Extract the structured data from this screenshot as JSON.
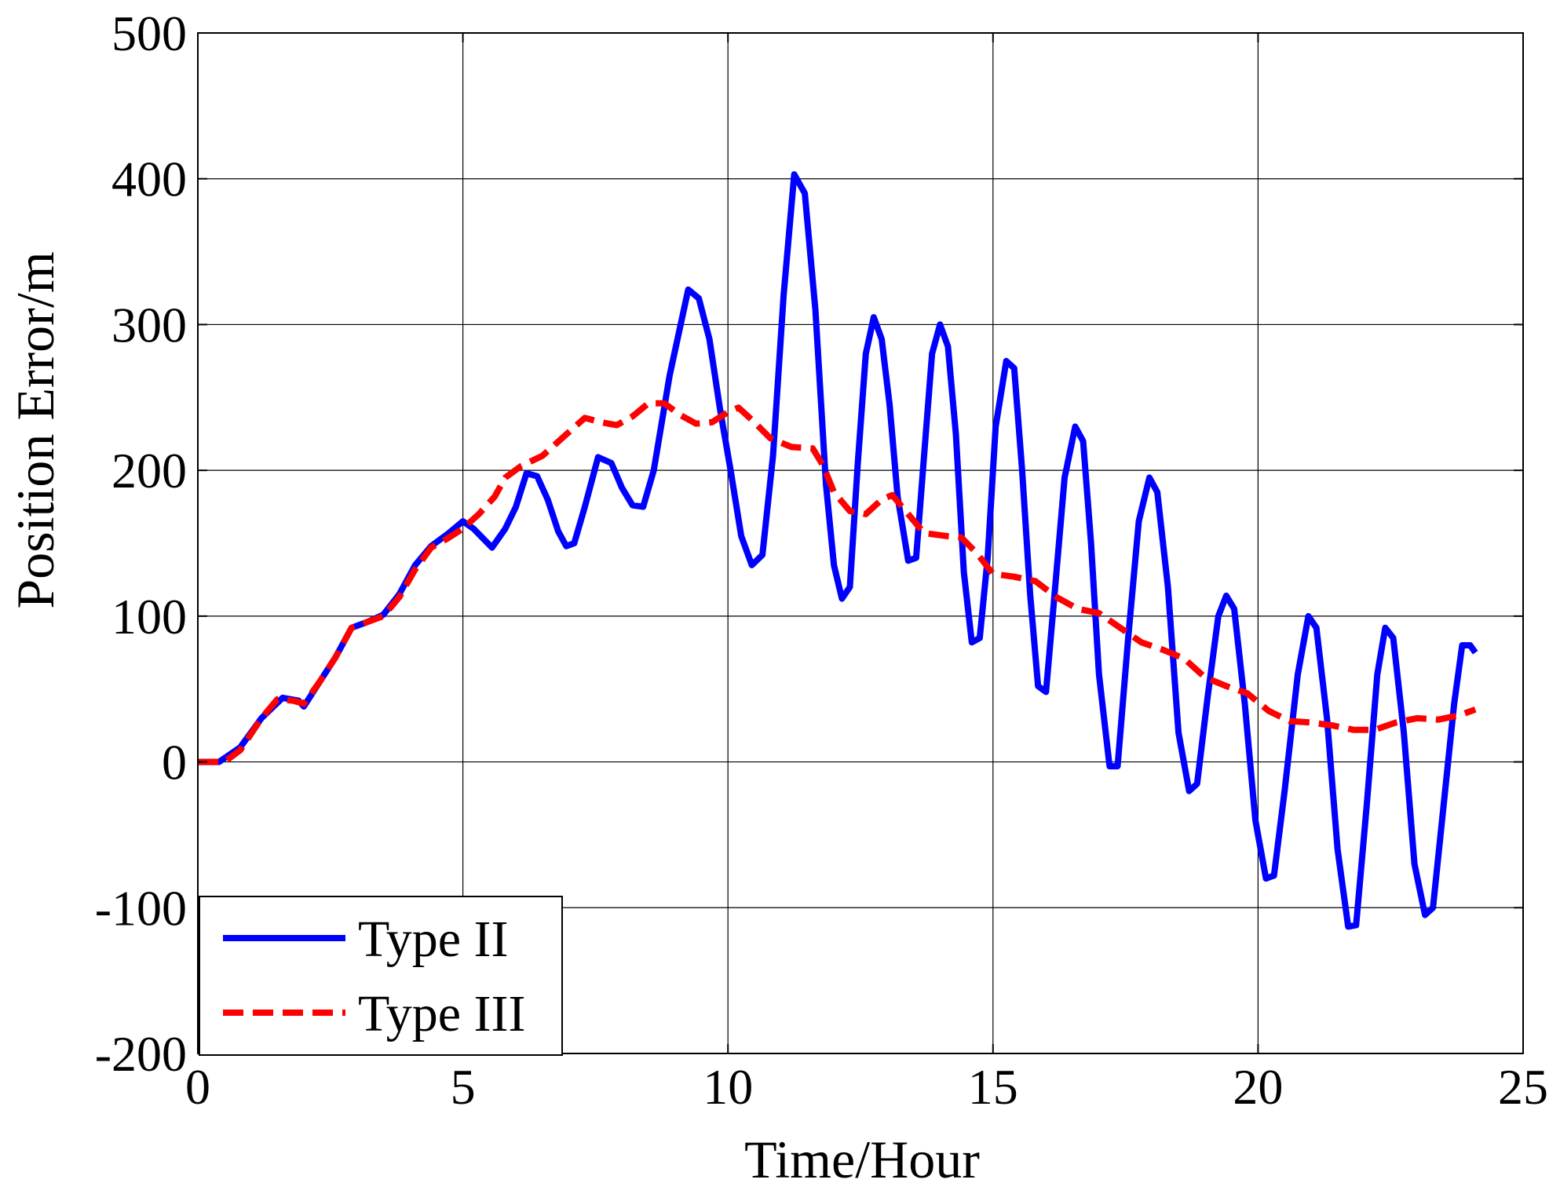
{
  "chart_data": {
    "type": "line",
    "title": "",
    "xlabel": "Time/Hour",
    "ylabel": "Position Error/m",
    "xlim": [
      0,
      25
    ],
    "ylim": [
      -200,
      500
    ],
    "xticks": [
      0,
      5,
      10,
      15,
      20,
      25
    ],
    "yticks": [
      -200,
      -100,
      0,
      100,
      200,
      300,
      400,
      500
    ],
    "xtick_labels": [
      "0",
      "5",
      "10",
      "15",
      "20",
      "25"
    ],
    "ytick_labels": [
      "-200",
      "-100",
      "0",
      "100",
      "200",
      "300",
      "400",
      "500"
    ],
    "grid": true,
    "legend_position": "bottom-left",
    "series": [
      {
        "name": "Type II",
        "color": "#0000ff",
        "style": "solid",
        "points": [
          [
            0,
            0
          ],
          [
            0.4,
            0
          ],
          [
            0.8,
            10
          ],
          [
            1.2,
            30
          ],
          [
            1.6,
            44
          ],
          [
            1.9,
            42
          ],
          [
            2.0,
            38
          ],
          [
            2.3,
            55
          ],
          [
            2.6,
            72
          ],
          [
            2.9,
            92
          ],
          [
            3.2,
            96
          ],
          [
            3.5,
            101
          ],
          [
            3.8,
            115
          ],
          [
            4.1,
            135
          ],
          [
            4.4,
            148
          ],
          [
            4.7,
            156
          ],
          [
            5.0,
            165
          ],
          [
            5.2,
            160
          ],
          [
            5.55,
            147
          ],
          [
            5.8,
            160
          ],
          [
            6.0,
            175
          ],
          [
            6.2,
            198
          ],
          [
            6.4,
            196
          ],
          [
            6.6,
            180
          ],
          [
            6.8,
            158
          ],
          [
            6.95,
            148
          ],
          [
            7.1,
            150
          ],
          [
            7.3,
            175
          ],
          [
            7.55,
            209
          ],
          [
            7.8,
            205
          ],
          [
            8.0,
            188
          ],
          [
            8.2,
            176
          ],
          [
            8.4,
            175
          ],
          [
            8.6,
            200
          ],
          [
            8.9,
            265
          ],
          [
            9.25,
            324
          ],
          [
            9.45,
            318
          ],
          [
            9.65,
            290
          ],
          [
            9.85,
            242
          ],
          [
            10.05,
            200
          ],
          [
            10.25,
            155
          ],
          [
            10.45,
            135
          ],
          [
            10.65,
            142
          ],
          [
            10.85,
            210
          ],
          [
            11.05,
            320
          ],
          [
            11.25,
            403
          ],
          [
            11.45,
            390
          ],
          [
            11.65,
            310
          ],
          [
            11.85,
            190
          ],
          [
            12.0,
            135
          ],
          [
            12.15,
            112
          ],
          [
            12.3,
            120
          ],
          [
            12.45,
            205
          ],
          [
            12.6,
            280
          ],
          [
            12.75,
            305
          ],
          [
            12.9,
            290
          ],
          [
            13.05,
            245
          ],
          [
            13.2,
            182
          ],
          [
            13.4,
            138
          ],
          [
            13.55,
            140
          ],
          [
            13.7,
            210
          ],
          [
            13.85,
            280
          ],
          [
            14.0,
            300
          ],
          [
            14.15,
            285
          ],
          [
            14.3,
            225
          ],
          [
            14.45,
            130
          ],
          [
            14.6,
            82
          ],
          [
            14.75,
            85
          ],
          [
            14.9,
            140
          ],
          [
            15.05,
            230
          ],
          [
            15.25,
            275
          ],
          [
            15.4,
            270
          ],
          [
            15.55,
            200
          ],
          [
            15.7,
            115
          ],
          [
            15.85,
            52
          ],
          [
            16.0,
            48
          ],
          [
            16.15,
            110
          ],
          [
            16.35,
            195
          ],
          [
            16.55,
            230
          ],
          [
            16.7,
            220
          ],
          [
            16.85,
            150
          ],
          [
            17.0,
            60
          ],
          [
            17.2,
            -3
          ],
          [
            17.35,
            -3
          ],
          [
            17.55,
            85
          ],
          [
            17.75,
            165
          ],
          [
            17.95,
            195
          ],
          [
            18.1,
            185
          ],
          [
            18.3,
            120
          ],
          [
            18.5,
            20
          ],
          [
            18.7,
            -20
          ],
          [
            18.85,
            -15
          ],
          [
            19.05,
            45
          ],
          [
            19.25,
            100
          ],
          [
            19.4,
            114
          ],
          [
            19.55,
            105
          ],
          [
            19.75,
            40
          ],
          [
            19.95,
            -40
          ],
          [
            20.15,
            -80
          ],
          [
            20.3,
            -78
          ],
          [
            20.5,
            -20
          ],
          [
            20.75,
            60
          ],
          [
            20.95,
            100
          ],
          [
            21.1,
            92
          ],
          [
            21.3,
            30
          ],
          [
            21.5,
            -60
          ],
          [
            21.7,
            -113
          ],
          [
            21.85,
            -112
          ],
          [
            22.05,
            -30
          ],
          [
            22.25,
            60
          ],
          [
            22.4,
            92
          ],
          [
            22.55,
            85
          ],
          [
            22.75,
            20
          ],
          [
            22.95,
            -70
          ],
          [
            23.15,
            -105
          ],
          [
            23.3,
            -100
          ],
          [
            23.5,
            -30
          ],
          [
            23.7,
            40
          ],
          [
            23.85,
            80
          ],
          [
            24.0,
            80
          ],
          [
            24.1,
            75
          ]
        ]
      },
      {
        "name": "Type III",
        "color": "#ff0000",
        "style": "dashed",
        "points": [
          [
            0,
            0
          ],
          [
            0.5,
            0
          ],
          [
            0.8,
            8
          ],
          [
            1.2,
            30
          ],
          [
            1.5,
            43
          ],
          [
            1.8,
            42
          ],
          [
            2.0,
            40
          ],
          [
            2.3,
            55
          ],
          [
            2.6,
            72
          ],
          [
            2.9,
            92
          ],
          [
            3.2,
            96
          ],
          [
            3.5,
            100
          ],
          [
            3.8,
            113
          ],
          [
            4.1,
            132
          ],
          [
            4.4,
            147
          ],
          [
            4.7,
            153
          ],
          [
            5.0,
            160
          ],
          [
            5.3,
            170
          ],
          [
            5.6,
            182
          ],
          [
            5.8,
            195
          ],
          [
            6.1,
            203
          ],
          [
            6.5,
            210
          ],
          [
            6.9,
            223
          ],
          [
            7.3,
            236
          ],
          [
            7.6,
            233
          ],
          [
            7.9,
            231
          ],
          [
            8.2,
            237
          ],
          [
            8.5,
            246
          ],
          [
            8.8,
            246
          ],
          [
            9.1,
            238
          ],
          [
            9.4,
            232
          ],
          [
            9.7,
            233
          ],
          [
            10.0,
            240
          ],
          [
            10.2,
            243
          ],
          [
            10.5,
            233
          ],
          [
            10.8,
            222
          ],
          [
            11.2,
            216
          ],
          [
            11.6,
            215
          ],
          [
            11.8,
            203
          ],
          [
            12.0,
            185
          ],
          [
            12.3,
            172
          ],
          [
            12.6,
            170
          ],
          [
            12.9,
            180
          ],
          [
            13.1,
            183
          ],
          [
            13.4,
            170
          ],
          [
            13.7,
            157
          ],
          [
            14.1,
            155
          ],
          [
            14.4,
            154
          ],
          [
            14.7,
            143
          ],
          [
            15.0,
            129
          ],
          [
            15.4,
            127
          ],
          [
            15.8,
            124
          ],
          [
            16.2,
            113
          ],
          [
            16.6,
            105
          ],
          [
            17.0,
            102
          ],
          [
            17.4,
            92
          ],
          [
            17.8,
            82
          ],
          [
            18.2,
            77
          ],
          [
            18.6,
            71
          ],
          [
            19.0,
            58
          ],
          [
            19.4,
            52
          ],
          [
            19.8,
            47
          ],
          [
            20.2,
            35
          ],
          [
            20.6,
            28
          ],
          [
            21.0,
            27
          ],
          [
            21.4,
            25
          ],
          [
            21.8,
            22
          ],
          [
            22.2,
            22
          ],
          [
            22.6,
            27
          ],
          [
            23.0,
            30
          ],
          [
            23.4,
            29
          ],
          [
            23.8,
            32
          ],
          [
            24.1,
            36
          ]
        ]
      }
    ]
  }
}
